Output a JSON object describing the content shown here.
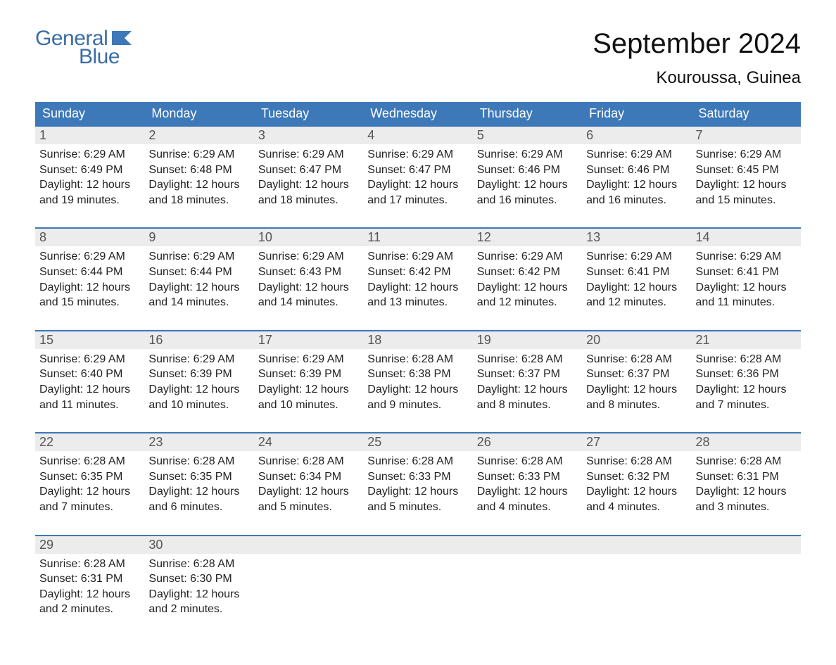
{
  "logo": {
    "text1": "General",
    "text2": "Blue",
    "flag_color": "#3d78b8"
  },
  "title": "September 2024",
  "location": "Kouroussa, Guinea",
  "colors": {
    "header_bg": "#3d78b8",
    "header_text": "#ffffff",
    "daynum_bg": "#ececec",
    "daynum_border": "#3d78b8",
    "daynum_text": "#555555",
    "body_text": "#222222",
    "page_bg": "#ffffff",
    "logo_color": "#3a6ea5"
  },
  "typography": {
    "month_title_fontsize": 40,
    "location_fontsize": 24,
    "weekday_fontsize": 18,
    "daynum_fontsize": 18,
    "body_fontsize": 16,
    "font_family": "Arial"
  },
  "weekdays": [
    "Sunday",
    "Monday",
    "Tuesday",
    "Wednesday",
    "Thursday",
    "Friday",
    "Saturday"
  ],
  "labels": {
    "sunrise": "Sunrise:",
    "sunset": "Sunset:",
    "daylight": "Daylight:"
  },
  "weeks": [
    [
      {
        "n": "1",
        "sr": "6:29 AM",
        "ss": "6:49 PM",
        "dl": "12 hours and 19 minutes."
      },
      {
        "n": "2",
        "sr": "6:29 AM",
        "ss": "6:48 PM",
        "dl": "12 hours and 18 minutes."
      },
      {
        "n": "3",
        "sr": "6:29 AM",
        "ss": "6:47 PM",
        "dl": "12 hours and 18 minutes."
      },
      {
        "n": "4",
        "sr": "6:29 AM",
        "ss": "6:47 PM",
        "dl": "12 hours and 17 minutes."
      },
      {
        "n": "5",
        "sr": "6:29 AM",
        "ss": "6:46 PM",
        "dl": "12 hours and 16 minutes."
      },
      {
        "n": "6",
        "sr": "6:29 AM",
        "ss": "6:46 PM",
        "dl": "12 hours and 16 minutes."
      },
      {
        "n": "7",
        "sr": "6:29 AM",
        "ss": "6:45 PM",
        "dl": "12 hours and 15 minutes."
      }
    ],
    [
      {
        "n": "8",
        "sr": "6:29 AM",
        "ss": "6:44 PM",
        "dl": "12 hours and 15 minutes."
      },
      {
        "n": "9",
        "sr": "6:29 AM",
        "ss": "6:44 PM",
        "dl": "12 hours and 14 minutes."
      },
      {
        "n": "10",
        "sr": "6:29 AM",
        "ss": "6:43 PM",
        "dl": "12 hours and 14 minutes."
      },
      {
        "n": "11",
        "sr": "6:29 AM",
        "ss": "6:42 PM",
        "dl": "12 hours and 13 minutes."
      },
      {
        "n": "12",
        "sr": "6:29 AM",
        "ss": "6:42 PM",
        "dl": "12 hours and 12 minutes."
      },
      {
        "n": "13",
        "sr": "6:29 AM",
        "ss": "6:41 PM",
        "dl": "12 hours and 12 minutes."
      },
      {
        "n": "14",
        "sr": "6:29 AM",
        "ss": "6:41 PM",
        "dl": "12 hours and 11 minutes."
      }
    ],
    [
      {
        "n": "15",
        "sr": "6:29 AM",
        "ss": "6:40 PM",
        "dl": "12 hours and 11 minutes."
      },
      {
        "n": "16",
        "sr": "6:29 AM",
        "ss": "6:39 PM",
        "dl": "12 hours and 10 minutes."
      },
      {
        "n": "17",
        "sr": "6:29 AM",
        "ss": "6:39 PM",
        "dl": "12 hours and 10 minutes."
      },
      {
        "n": "18",
        "sr": "6:28 AM",
        "ss": "6:38 PM",
        "dl": "12 hours and 9 minutes."
      },
      {
        "n": "19",
        "sr": "6:28 AM",
        "ss": "6:37 PM",
        "dl": "12 hours and 8 minutes."
      },
      {
        "n": "20",
        "sr": "6:28 AM",
        "ss": "6:37 PM",
        "dl": "12 hours and 8 minutes."
      },
      {
        "n": "21",
        "sr": "6:28 AM",
        "ss": "6:36 PM",
        "dl": "12 hours and 7 minutes."
      }
    ],
    [
      {
        "n": "22",
        "sr": "6:28 AM",
        "ss": "6:35 PM",
        "dl": "12 hours and 7 minutes."
      },
      {
        "n": "23",
        "sr": "6:28 AM",
        "ss": "6:35 PM",
        "dl": "12 hours and 6 minutes."
      },
      {
        "n": "24",
        "sr": "6:28 AM",
        "ss": "6:34 PM",
        "dl": "12 hours and 5 minutes."
      },
      {
        "n": "25",
        "sr": "6:28 AM",
        "ss": "6:33 PM",
        "dl": "12 hours and 5 minutes."
      },
      {
        "n": "26",
        "sr": "6:28 AM",
        "ss": "6:33 PM",
        "dl": "12 hours and 4 minutes."
      },
      {
        "n": "27",
        "sr": "6:28 AM",
        "ss": "6:32 PM",
        "dl": "12 hours and 4 minutes."
      },
      {
        "n": "28",
        "sr": "6:28 AM",
        "ss": "6:31 PM",
        "dl": "12 hours and 3 minutes."
      }
    ],
    [
      {
        "n": "29",
        "sr": "6:28 AM",
        "ss": "6:31 PM",
        "dl": "12 hours and 2 minutes."
      },
      {
        "n": "30",
        "sr": "6:28 AM",
        "ss": "6:30 PM",
        "dl": "12 hours and 2 minutes."
      },
      null,
      null,
      null,
      null,
      null
    ]
  ]
}
